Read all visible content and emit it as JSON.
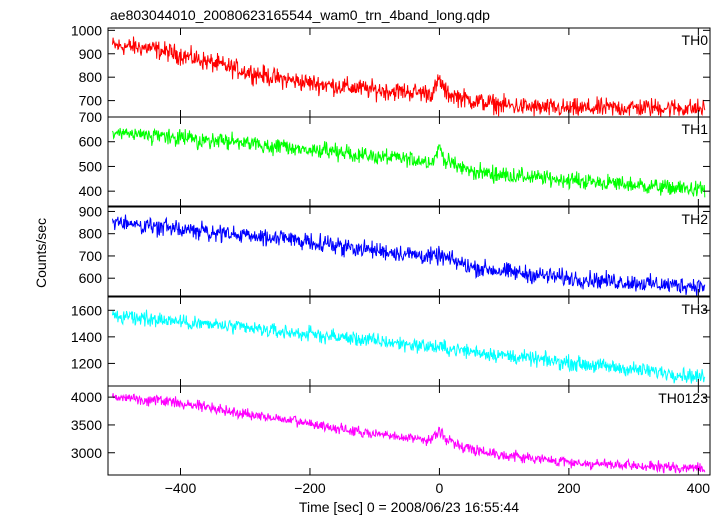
{
  "chart_data": {
    "type": "line",
    "title": "ae803044010_20080623165544_wam0_trn_4band_long.qdp",
    "xlabel": "Time [sec] 0 = 2008/06/23 16:55:44",
    "ylabel": "Counts/sec",
    "xlim": [
      -512,
      418
    ],
    "x_ticks": [
      -400,
      -200,
      0,
      200,
      400
    ],
    "legend_position": "per-panel label top-right",
    "grid": false,
    "series": [
      {
        "name": "TH0",
        "color": "#ff0000",
        "ylim": [
          630,
          1010
        ],
        "y_ticks": [
          700,
          800,
          900,
          1000
        ],
        "y_tick_labels": [
          "700",
          "800",
          "900",
          "1000"
        ],
        "points": [
          [
            -505,
            935
          ],
          [
            -450,
            925
          ],
          [
            -400,
            895
          ],
          [
            -350,
            860
          ],
          [
            -300,
            825
          ],
          [
            -250,
            795
          ],
          [
            -200,
            775
          ],
          [
            -150,
            760
          ],
          [
            -100,
            745
          ],
          [
            -50,
            738
          ],
          [
            -10,
            732
          ],
          [
            0,
            790
          ],
          [
            10,
            732
          ],
          [
            50,
            700
          ],
          [
            100,
            680
          ],
          [
            150,
            670
          ],
          [
            200,
            665
          ],
          [
            250,
            668
          ],
          [
            300,
            670
          ],
          [
            350,
            670
          ],
          [
            410,
            665
          ]
        ],
        "noise": 40
      },
      {
        "name": "TH1",
        "color": "#00ff00",
        "ylim": [
          340,
          700
        ],
        "y_ticks": [
          400,
          500,
          600,
          700
        ],
        "y_tick_labels": [
          "400",
          "500",
          "600",
          "700"
        ],
        "points": [
          [
            -505,
            630
          ],
          [
            -450,
            625
          ],
          [
            -400,
            615
          ],
          [
            -350,
            605
          ],
          [
            -300,
            595
          ],
          [
            -250,
            580
          ],
          [
            -200,
            565
          ],
          [
            -150,
            555
          ],
          [
            -100,
            540
          ],
          [
            -50,
            530
          ],
          [
            -10,
            520
          ],
          [
            0,
            580
          ],
          [
            10,
            520
          ],
          [
            50,
            480
          ],
          [
            100,
            465
          ],
          [
            150,
            455
          ],
          [
            200,
            445
          ],
          [
            250,
            435
          ],
          [
            300,
            425
          ],
          [
            350,
            415
          ],
          [
            410,
            405
          ]
        ],
        "noise": 32
      },
      {
        "name": "TH2",
        "color": "#0000ff",
        "ylim": [
          520,
          920
        ],
        "y_ticks": [
          600,
          700,
          800,
          900
        ],
        "y_tick_labels": [
          "600",
          "700",
          "800",
          "900"
        ],
        "points": [
          [
            -505,
            855
          ],
          [
            -450,
            835
          ],
          [
            -400,
            820
          ],
          [
            -350,
            805
          ],
          [
            -300,
            790
          ],
          [
            -250,
            780
          ],
          [
            -200,
            765
          ],
          [
            -150,
            745
          ],
          [
            -100,
            725
          ],
          [
            -50,
            710
          ],
          [
            -10,
            695
          ],
          [
            0,
            700
          ],
          [
            10,
            690
          ],
          [
            50,
            650
          ],
          [
            100,
            630
          ],
          [
            150,
            615
          ],
          [
            200,
            600
          ],
          [
            250,
            590
          ],
          [
            300,
            580
          ],
          [
            350,
            570
          ],
          [
            410,
            565
          ]
        ],
        "noise": 38
      },
      {
        "name": "TH3",
        "color": "#00ffff",
        "ylim": [
          1030,
          1700
        ],
        "y_ticks": [
          1200,
          1400,
          1600
        ],
        "y_tick_labels": [
          "1200",
          "1400",
          "1600"
        ],
        "points": [
          [
            -505,
            1550
          ],
          [
            -450,
            1540
          ],
          [
            -400,
            1515
          ],
          [
            -350,
            1490
          ],
          [
            -300,
            1465
          ],
          [
            -250,
            1440
          ],
          [
            -200,
            1420
          ],
          [
            -150,
            1395
          ],
          [
            -100,
            1370
          ],
          [
            -50,
            1345
          ],
          [
            0,
            1320
          ],
          [
            50,
            1290
          ],
          [
            100,
            1260
          ],
          [
            150,
            1230
          ],
          [
            200,
            1205
          ],
          [
            250,
            1180
          ],
          [
            300,
            1155
          ],
          [
            350,
            1130
          ],
          [
            410,
            1095
          ]
        ],
        "noise": 55
      },
      {
        "name": "TH0123",
        "color": "#ff00ff",
        "ylim": [
          2600,
          4200
        ],
        "y_ticks": [
          3000,
          3500,
          4000
        ],
        "y_tick_labels": [
          "3000",
          "3500",
          "4000"
        ],
        "points": [
          [
            -505,
            4000
          ],
          [
            -450,
            3960
          ],
          [
            -400,
            3890
          ],
          [
            -350,
            3800
          ],
          [
            -300,
            3700
          ],
          [
            -250,
            3610
          ],
          [
            -200,
            3520
          ],
          [
            -150,
            3420
          ],
          [
            -100,
            3330
          ],
          [
            -50,
            3270
          ],
          [
            -10,
            3240
          ],
          [
            0,
            3420
          ],
          [
            10,
            3230
          ],
          [
            50,
            3060
          ],
          [
            100,
            2960
          ],
          [
            150,
            2890
          ],
          [
            200,
            2830
          ],
          [
            250,
            2790
          ],
          [
            300,
            2760
          ],
          [
            350,
            2740
          ],
          [
            410,
            2720
          ]
        ],
        "noise": 95
      }
    ]
  }
}
